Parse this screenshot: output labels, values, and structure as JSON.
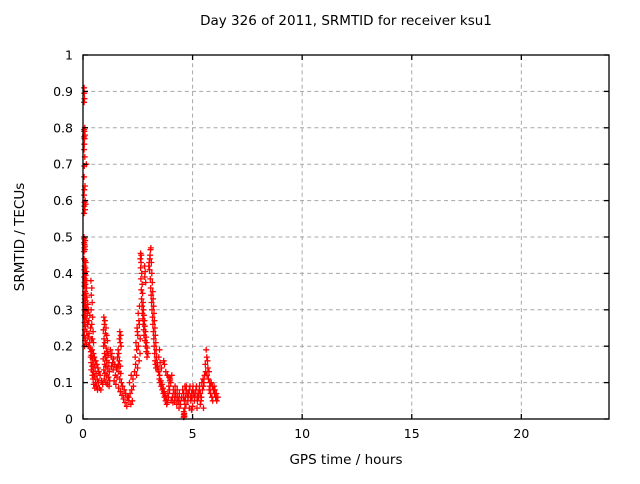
{
  "title": "Day 326 of 2011, SRMTID for receiver ksu1",
  "chart_data": {
    "type": "scatter",
    "title": "Day 326 of 2011, SRMTID for receiver ksu1",
    "xlabel": "GPS time / hours",
    "ylabel": "SRMTID / TECUs",
    "xlim": [
      0,
      24
    ],
    "ylim": [
      0,
      1
    ],
    "xticks": [
      0,
      5,
      10,
      15,
      20
    ],
    "yticks": [
      0,
      0.1,
      0.2,
      0.3,
      0.4,
      0.5,
      0.6,
      0.7,
      0.8,
      0.9,
      1
    ],
    "grid": true,
    "legend": "none",
    "marker": "plus",
    "marker_color": "#ff0000",
    "grid_color": "#a8a8a8",
    "axis_color": "#000000",
    "background_color": "#ffffff",
    "points": [
      [
        0.05,
        0.91
      ],
      [
        0.06,
        0.895
      ],
      [
        0.07,
        0.88
      ],
      [
        0.05,
        0.87
      ],
      [
        0.08,
        0.8
      ],
      [
        0.05,
        0.795
      ],
      [
        0.06,
        0.79
      ],
      [
        0.09,
        0.78
      ],
      [
        0.05,
        0.775
      ],
      [
        0.07,
        0.77
      ],
      [
        0.06,
        0.755
      ],
      [
        0.05,
        0.74
      ],
      [
        0.08,
        0.72
      ],
      [
        0.15,
        0.7
      ],
      [
        0.06,
        0.695
      ],
      [
        0.05,
        0.665
      ],
      [
        0.09,
        0.64
      ],
      [
        0.06,
        0.63
      ],
      [
        0.05,
        0.615
      ],
      [
        0.1,
        0.6
      ],
      [
        0.07,
        0.595
      ],
      [
        0.12,
        0.59
      ],
      [
        0.06,
        0.585
      ],
      [
        0.09,
        0.575
      ],
      [
        0.05,
        0.565
      ],
      [
        0.04,
        0.5
      ],
      [
        0.06,
        0.495
      ],
      [
        0.1,
        0.49
      ],
      [
        0.05,
        0.485
      ],
      [
        0.07,
        0.48
      ],
      [
        0.09,
        0.475
      ],
      [
        0.06,
        0.47
      ],
      [
        0.08,
        0.465
      ],
      [
        0.05,
        0.46
      ],
      [
        0.05,
        0.44
      ],
      [
        0.09,
        0.435
      ],
      [
        0.13,
        0.43
      ],
      [
        0.07,
        0.42
      ],
      [
        0.11,
        0.415
      ],
      [
        0.06,
        0.41
      ],
      [
        0.15,
        0.405
      ],
      [
        0.08,
        0.4
      ],
      [
        0.12,
        0.395
      ],
      [
        0.05,
        0.39
      ],
      [
        0.1,
        0.385
      ],
      [
        0.14,
        0.38
      ],
      [
        0.07,
        0.375
      ],
      [
        0.11,
        0.37
      ],
      [
        0.06,
        0.365
      ],
      [
        0.16,
        0.36
      ],
      [
        0.09,
        0.35
      ],
      [
        0.13,
        0.345
      ],
      [
        0.06,
        0.34
      ],
      [
        0.18,
        0.335
      ],
      [
        0.08,
        0.33
      ],
      [
        0.12,
        0.325
      ],
      [
        0.05,
        0.32
      ],
      [
        0.22,
        0.315
      ],
      [
        0.1,
        0.31
      ],
      [
        0.15,
        0.305
      ],
      [
        0.07,
        0.3
      ],
      [
        0.25,
        0.3
      ],
      [
        0.11,
        0.295
      ],
      [
        0.19,
        0.29
      ],
      [
        0.06,
        0.285
      ],
      [
        0.31,
        0.285
      ],
      [
        0.09,
        0.28
      ],
      [
        0.14,
        0.275
      ],
      [
        0.27,
        0.27
      ],
      [
        0.07,
        0.265
      ],
      [
        0.21,
        0.26
      ],
      [
        0.12,
        0.255
      ],
      [
        0.34,
        0.25
      ],
      [
        0.08,
        0.245
      ],
      [
        0.17,
        0.24
      ],
      [
        0.28,
        0.235
      ],
      [
        0.06,
        0.23
      ],
      [
        0.23,
        0.225
      ],
      [
        0.11,
        0.22
      ],
      [
        0.38,
        0.22
      ],
      [
        0.09,
        0.215
      ],
      [
        0.3,
        0.21
      ],
      [
        0.15,
        0.205
      ],
      [
        0.25,
        0.2
      ],
      [
        0.07,
        0.2
      ],
      [
        0.36,
        0.38
      ],
      [
        0.4,
        0.36
      ],
      [
        0.38,
        0.34
      ],
      [
        0.42,
        0.32
      ],
      [
        0.37,
        0.3
      ],
      [
        0.44,
        0.28
      ],
      [
        0.4,
        0.26
      ],
      [
        0.46,
        0.24
      ],
      [
        0.43,
        0.22
      ],
      [
        0.48,
        0.21
      ],
      [
        0.33,
        0.195
      ],
      [
        0.41,
        0.19
      ],
      [
        0.36,
        0.185
      ],
      [
        0.48,
        0.18
      ],
      [
        0.39,
        0.175
      ],
      [
        0.52,
        0.17
      ],
      [
        0.35,
        0.17
      ],
      [
        0.44,
        0.165
      ],
      [
        0.58,
        0.16
      ],
      [
        0.37,
        0.155
      ],
      [
        0.5,
        0.15
      ],
      [
        0.63,
        0.15
      ],
      [
        0.42,
        0.145
      ],
      [
        0.55,
        0.14
      ],
      [
        0.68,
        0.14
      ],
      [
        0.38,
        0.135
      ],
      [
        0.47,
        0.13
      ],
      [
        0.72,
        0.13
      ],
      [
        0.6,
        0.125
      ],
      [
        0.43,
        0.12
      ],
      [
        0.78,
        0.12
      ],
      [
        0.53,
        0.115
      ],
      [
        0.65,
        0.11
      ],
      [
        0.46,
        0.11
      ],
      [
        0.84,
        0.105
      ],
      [
        0.57,
        0.1
      ],
      [
        0.7,
        0.1
      ],
      [
        0.49,
        0.095
      ],
      [
        0.9,
        0.095
      ],
      [
        0.62,
        0.09
      ],
      [
        0.75,
        0.085
      ],
      [
        0.54,
        0.085
      ],
      [
        0.81,
        0.08
      ],
      [
        0.66,
        0.08
      ],
      [
        0.95,
        0.28
      ],
      [
        1,
        0.27
      ],
      [
        0.97,
        0.26
      ],
      [
        1.05,
        0.25
      ],
      [
        0.93,
        0.245
      ],
      [
        1.02,
        0.235
      ],
      [
        1.08,
        0.23
      ],
      [
        0.96,
        0.22
      ],
      [
        1.12,
        0.215
      ],
      [
        1,
        0.21
      ],
      [
        0.94,
        0.2
      ],
      [
        1.06,
        0.195
      ],
      [
        1.1,
        0.185
      ],
      [
        0.98,
        0.18
      ],
      [
        1.15,
        0.175
      ],
      [
        1.03,
        0.17
      ],
      [
        0.92,
        0.165
      ],
      [
        1.09,
        0.16
      ],
      [
        1.18,
        0.155
      ],
      [
        0.99,
        0.15
      ],
      [
        1.05,
        0.145
      ],
      [
        1.13,
        0.14
      ],
      [
        0.95,
        0.135
      ],
      [
        1.2,
        0.13
      ],
      [
        1.01,
        0.125
      ],
      [
        1.08,
        0.12
      ],
      [
        1.16,
        0.115
      ],
      [
        0.97,
        0.11
      ],
      [
        1.22,
        0.105
      ],
      [
        1.04,
        0.1
      ],
      [
        1.11,
        0.095
      ],
      [
        1.19,
        0.09
      ],
      [
        1.25,
        0.19
      ],
      [
        1.32,
        0.18
      ],
      [
        1.28,
        0.17
      ],
      [
        1.4,
        0.165
      ],
      [
        1.35,
        0.155
      ],
      [
        1.45,
        0.15
      ],
      [
        1.3,
        0.145
      ],
      [
        1.52,
        0.14
      ],
      [
        1.38,
        0.135
      ],
      [
        1.6,
        0.19
      ],
      [
        1.63,
        0.18
      ],
      [
        1.58,
        0.17
      ],
      [
        1.66,
        0.16
      ],
      [
        1.61,
        0.15
      ],
      [
        1.7,
        0.145
      ],
      [
        1.56,
        0.14
      ],
      [
        1.64,
        0.13
      ],
      [
        1.72,
        0.125
      ],
      [
        1.48,
        0.12
      ],
      [
        1.55,
        0.115
      ],
      [
        1.68,
        0.11
      ],
      [
        1.42,
        0.105
      ],
      [
        1.75,
        0.1
      ],
      [
        1.5,
        0.095
      ],
      [
        1.8,
        0.09
      ],
      [
        1.62,
        0.085
      ],
      [
        1.88,
        0.08
      ],
      [
        1.7,
        0.075
      ],
      [
        1.95,
        0.07
      ],
      [
        1.78,
        0.065
      ],
      [
        2.02,
        0.06
      ],
      [
        1.85,
        0.055
      ],
      [
        2.1,
        0.05
      ],
      [
        1.92,
        0.045
      ],
      [
        2.18,
        0.04
      ],
      [
        2,
        0.035
      ],
      [
        2.25,
        0.05
      ],
      [
        2.08,
        0.06
      ],
      [
        2.15,
        0.07
      ],
      [
        2.22,
        0.08
      ],
      [
        2.3,
        0.09
      ],
      [
        2.12,
        0.1
      ],
      [
        2.28,
        0.11
      ],
      [
        2.2,
        0.12
      ],
      [
        1.66,
        0.22
      ],
      [
        1.7,
        0.21
      ],
      [
        1.74,
        0.2
      ],
      [
        1.68,
        0.24
      ],
      [
        1.72,
        0.23
      ],
      [
        2.35,
        0.13
      ],
      [
        2.4,
        0.15
      ],
      [
        2.38,
        0.17
      ],
      [
        2.45,
        0.19
      ],
      [
        2.42,
        0.21
      ],
      [
        2.5,
        0.23
      ],
      [
        2.47,
        0.25
      ],
      [
        2.55,
        0.27
      ],
      [
        2.52,
        0.29
      ],
      [
        2.58,
        0.31
      ],
      [
        2.44,
        0.12
      ],
      [
        2.49,
        0.14
      ],
      [
        2.56,
        0.16
      ],
      [
        2.6,
        0.18
      ],
      [
        2.53,
        0.2
      ],
      [
        2.61,
        0.22
      ],
      [
        2.48,
        0.24
      ],
      [
        2.57,
        0.26
      ],
      [
        2.62,
        0.44
      ],
      [
        2.65,
        0.43
      ],
      [
        2.63,
        0.415
      ],
      [
        2.68,
        0.4
      ],
      [
        2.64,
        0.385
      ],
      [
        2.7,
        0.37
      ],
      [
        2.66,
        0.355
      ],
      [
        2.72,
        0.345
      ],
      [
        2.67,
        0.33
      ],
      [
        2.74,
        0.32
      ],
      [
        2.69,
        0.31
      ],
      [
        2.76,
        0.3
      ],
      [
        2.71,
        0.29
      ],
      [
        2.78,
        0.285
      ],
      [
        2.73,
        0.275
      ],
      [
        2.8,
        0.27
      ],
      [
        2.75,
        0.26
      ],
      [
        2.82,
        0.255
      ],
      [
        2.77,
        0.245
      ],
      [
        2.85,
        0.24
      ],
      [
        2.79,
        0.23
      ],
      [
        2.88,
        0.225
      ],
      [
        2.83,
        0.215
      ],
      [
        2.9,
        0.21
      ],
      [
        2.86,
        0.2
      ],
      [
        2.93,
        0.195
      ],
      [
        2.89,
        0.185
      ],
      [
        2.96,
        0.18
      ],
      [
        2.92,
        0.17
      ],
      [
        3,
        0.42
      ],
      [
        3.05,
        0.44
      ],
      [
        3.08,
        0.465
      ],
      [
        3.1,
        0.47
      ],
      [
        3.06,
        0.45
      ],
      [
        3.12,
        0.43
      ],
      [
        3.04,
        0.41
      ],
      [
        3.14,
        0.4
      ],
      [
        3.07,
        0.385
      ],
      [
        3.16,
        0.375
      ],
      [
        3.09,
        0.36
      ],
      [
        3.18,
        0.35
      ],
      [
        3.11,
        0.34
      ],
      [
        3.2,
        0.33
      ],
      [
        3.13,
        0.32
      ],
      [
        3.22,
        0.31
      ],
      [
        3.15,
        0.3
      ],
      [
        3.24,
        0.29
      ],
      [
        3.17,
        0.28
      ],
      [
        3.26,
        0.27
      ],
      [
        3.19,
        0.26
      ],
      [
        3.28,
        0.25
      ],
      [
        3.21,
        0.24
      ],
      [
        3.3,
        0.23
      ],
      [
        3.23,
        0.22
      ],
      [
        3.32,
        0.21
      ],
      [
        3.25,
        0.2
      ],
      [
        3.34,
        0.19
      ],
      [
        3.27,
        0.18
      ],
      [
        3.36,
        0.17
      ],
      [
        3.29,
        0.16
      ],
      [
        3.38,
        0.155
      ],
      [
        3.31,
        0.15
      ],
      [
        3.4,
        0.145
      ],
      [
        3.33,
        0.14
      ],
      [
        3.42,
        0.135
      ],
      [
        2.63,
        0.455
      ],
      [
        2.66,
        0.45
      ],
      [
        2.81,
        0.42
      ],
      [
        2.84,
        0.405
      ],
      [
        2.82,
        0.39
      ],
      [
        2.86,
        0.375
      ],
      [
        3.02,
        0.43
      ],
      [
        3.45,
        0.13
      ],
      [
        3.5,
        0.12
      ],
      [
        3.48,
        0.11
      ],
      [
        3.55,
        0.105
      ],
      [
        3.52,
        0.1
      ],
      [
        3.6,
        0.095
      ],
      [
        3.57,
        0.09
      ],
      [
        3.65,
        0.085
      ],
      [
        3.62,
        0.08
      ],
      [
        3.7,
        0.075
      ],
      [
        3.67,
        0.07
      ],
      [
        3.75,
        0.065
      ],
      [
        3.72,
        0.06
      ],
      [
        3.8,
        0.055
      ],
      [
        3.77,
        0.05
      ],
      [
        3.85,
        0.045
      ],
      [
        3.82,
        0.04
      ],
      [
        3.9,
        0.06
      ],
      [
        3.88,
        0.07
      ],
      [
        3.95,
        0.08
      ],
      [
        3.92,
        0.09
      ],
      [
        4,
        0.1
      ],
      [
        3.98,
        0.11
      ],
      [
        4.05,
        0.12
      ],
      [
        4.02,
        0.05
      ],
      [
        4.1,
        0.045
      ],
      [
        4.08,
        0.06
      ],
      [
        4.15,
        0.07
      ],
      [
        4.12,
        0.08
      ],
      [
        4.2,
        0.09
      ],
      [
        4.18,
        0.05
      ],
      [
        4.25,
        0.06
      ],
      [
        4.22,
        0.07
      ],
      [
        4.3,
        0.08
      ],
      [
        4.28,
        0.04
      ],
      [
        4.35,
        0.05
      ],
      [
        4.32,
        0.06
      ],
      [
        4.4,
        0.07
      ],
      [
        4.38,
        0.03
      ],
      [
        4.45,
        0.04
      ],
      [
        4.42,
        0.05
      ],
      [
        4.5,
        0.06
      ],
      [
        3.46,
        0.17
      ],
      [
        3.49,
        0.19
      ],
      [
        3.52,
        0.155
      ],
      [
        3.58,
        0.14
      ],
      [
        3.68,
        0.16
      ],
      [
        3.72,
        0.15
      ],
      [
        3.78,
        0.13
      ],
      [
        3.85,
        0.12
      ],
      [
        3.92,
        0.115
      ],
      [
        3.96,
        0.105
      ],
      [
        4.59,
        0.005
      ],
      [
        4.6,
        0.012
      ],
      [
        4.61,
        0.006
      ],
      [
        4.62,
        0.015
      ],
      [
        4.63,
        0.008
      ],
      [
        4.6,
        0.02
      ],
      [
        4.55,
        0.08
      ],
      [
        4.6,
        0.07
      ],
      [
        4.58,
        0.06
      ],
      [
        4.65,
        0.09
      ],
      [
        4.62,
        0.05
      ],
      [
        4.7,
        0.08
      ],
      [
        4.68,
        0.06
      ],
      [
        4.75,
        0.07
      ],
      [
        4.72,
        0.09
      ],
      [
        4.8,
        0.06
      ],
      [
        4.78,
        0.05
      ],
      [
        4.85,
        0.08
      ],
      [
        4.82,
        0.07
      ],
      [
        4.9,
        0.06
      ],
      [
        4.88,
        0.09
      ],
      [
        4.95,
        0.07
      ],
      [
        4.92,
        0.05
      ],
      [
        5,
        0.08
      ],
      [
        4.98,
        0.06
      ],
      [
        5.05,
        0.07
      ],
      [
        5.02,
        0.09
      ],
      [
        5.1,
        0.06
      ],
      [
        5.08,
        0.05
      ],
      [
        5.15,
        0.08
      ],
      [
        5.12,
        0.07
      ],
      [
        5.2,
        0.06
      ],
      [
        5.18,
        0.09
      ],
      [
        5.25,
        0.07
      ],
      [
        5.22,
        0.05
      ],
      [
        5.3,
        0.08
      ],
      [
        5.28,
        0.06
      ],
      [
        5.35,
        0.07
      ],
      [
        5.32,
        0.09
      ],
      [
        5.4,
        0.06
      ],
      [
        5.38,
        0.05
      ],
      [
        5.45,
        0.08
      ],
      [
        5.42,
        0.1
      ],
      [
        5.5,
        0.09
      ],
      [
        5.48,
        0.11
      ],
      [
        5.55,
        0.12
      ],
      [
        5.52,
        0.1
      ],
      [
        5.6,
        0.13
      ],
      [
        5.58,
        0.15
      ],
      [
        5.65,
        0.17
      ],
      [
        5.62,
        0.19
      ],
      [
        5.68,
        0.16
      ],
      [
        5.7,
        0.14
      ],
      [
        5.66,
        0.12
      ],
      [
        5.72,
        0.11
      ],
      [
        5.75,
        0.13
      ],
      [
        5.78,
        0.1
      ],
      [
        5.8,
        0.09
      ],
      [
        5.76,
        0.08
      ],
      [
        5.85,
        0.1
      ],
      [
        5.82,
        0.07
      ],
      [
        5.9,
        0.09
      ],
      [
        5.88,
        0.06
      ],
      [
        5.95,
        0.08
      ],
      [
        5.92,
        0.05
      ],
      [
        6,
        0.07
      ],
      [
        5.98,
        0.09
      ],
      [
        6.05,
        0.06
      ],
      [
        6.02,
        0.08
      ],
      [
        6.1,
        0.05
      ],
      [
        6.08,
        0.07
      ],
      [
        6.15,
        0.06
      ],
      [
        4.7,
        0.04
      ],
      [
        4.85,
        0.03
      ],
      [
        5,
        0.035
      ],
      [
        5.2,
        0.03
      ],
      [
        5.35,
        0.04
      ],
      [
        4.65,
        0.03
      ],
      [
        4.95,
        0.025
      ],
      [
        5.5,
        0.03
      ]
    ]
  }
}
